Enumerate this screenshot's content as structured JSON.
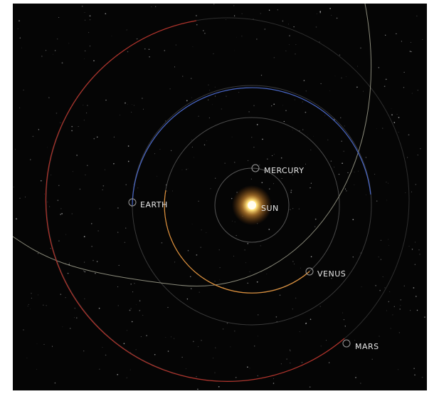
{
  "bodies": [
    {
      "label": "SUN"
    },
    {
      "label": "MERCURY"
    },
    {
      "label": "EARTH"
    },
    {
      "label": "VENUS"
    },
    {
      "label": "MARS"
    }
  ]
}
